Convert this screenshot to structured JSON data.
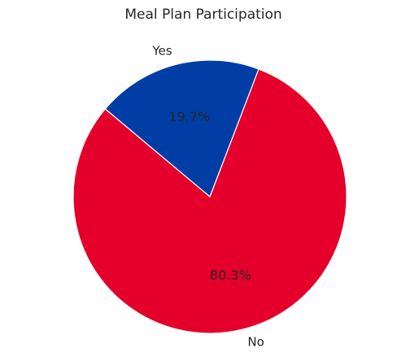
{
  "chart_data": {
    "type": "pie",
    "title": "Meal Plan Participation",
    "categories": [
      "Yes",
      "No"
    ],
    "values": [
      19.7,
      80.3
    ],
    "value_labels": [
      "19.7%",
      "80.3%"
    ],
    "colors": [
      "#003da5",
      "#e4002b"
    ]
  }
}
